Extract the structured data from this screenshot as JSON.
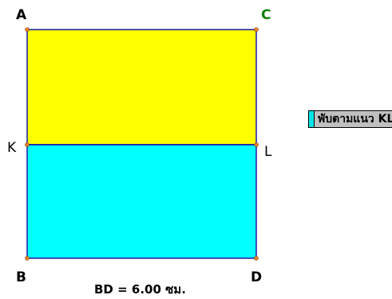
{
  "colors": {
    "upper_fill": "#ffff00",
    "lower_fill": "#00ffff",
    "edge": "#1a1aa6",
    "point": "#e8802a",
    "label_c": "#008000",
    "label_default": "#000000",
    "button_swatch": "#00e5e5"
  },
  "vertices": {
    "A": "A",
    "B": "B",
    "C": "C",
    "D": "D",
    "K": "K",
    "L": "L"
  },
  "measurement": "BD = 6.00 ซม.",
  "fold_button": {
    "label": "พับตามแนว KL"
  }
}
